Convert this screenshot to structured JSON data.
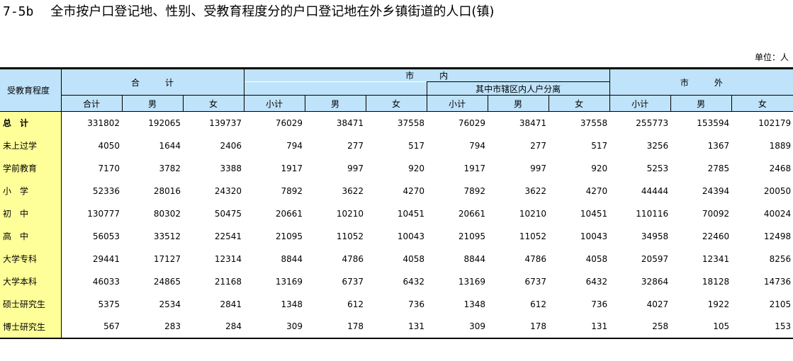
{
  "title": {
    "code": "7-5b",
    "text": "全市按户口登记地、性别、受教育程度分的户口登记地在外乡镇街道的人口(镇)"
  },
  "unit": "单位：人",
  "header": {
    "row_label": "受教育程度",
    "groups": {
      "total": "合　　　计",
      "city_inside": "市　　　内",
      "city_sub": "其中市辖区内人户分离",
      "city_outside": "市　　　外"
    },
    "columns": [
      "合计",
      "男",
      "女",
      "小计",
      "男",
      "女",
      "小计",
      "男",
      "女",
      "小计",
      "男",
      "女"
    ]
  },
  "rows": [
    {
      "label": "总　计",
      "values": [
        "331802",
        "192065",
        "139737",
        "76029",
        "38471",
        "37558",
        "76029",
        "38471",
        "37558",
        "255773",
        "153594",
        "102179"
      ]
    },
    {
      "label": "未上过学",
      "values": [
        "4050",
        "1644",
        "2406",
        "794",
        "277",
        "517",
        "794",
        "277",
        "517",
        "3256",
        "1367",
        "1889"
      ]
    },
    {
      "label": "学前教育",
      "values": [
        "7170",
        "3782",
        "3388",
        "1917",
        "997",
        "920",
        "1917",
        "997",
        "920",
        "5253",
        "2785",
        "2468"
      ]
    },
    {
      "label": "小　学",
      "values": [
        "52336",
        "28016",
        "24320",
        "7892",
        "3622",
        "4270",
        "7892",
        "3622",
        "4270",
        "44444",
        "24394",
        "20050"
      ]
    },
    {
      "label": "初　中",
      "values": [
        "130777",
        "80302",
        "50475",
        "20661",
        "10210",
        "10451",
        "20661",
        "10210",
        "10451",
        "110116",
        "70092",
        "40024"
      ]
    },
    {
      "label": "高　中",
      "values": [
        "56053",
        "33512",
        "22541",
        "21095",
        "11052",
        "10043",
        "21095",
        "11052",
        "10043",
        "34958",
        "22460",
        "12498"
      ]
    },
    {
      "label": "大学专科",
      "values": [
        "29441",
        "17127",
        "12314",
        "8844",
        "4786",
        "4058",
        "8844",
        "4786",
        "4058",
        "20597",
        "12341",
        "8256"
      ]
    },
    {
      "label": "大学本科",
      "values": [
        "46033",
        "24865",
        "21168",
        "13169",
        "6737",
        "6432",
        "13169",
        "6737",
        "6432",
        "32864",
        "18128",
        "14736"
      ]
    },
    {
      "label": "硕士研究生",
      "values": [
        "5375",
        "2534",
        "2841",
        "1348",
        "612",
        "736",
        "1348",
        "612",
        "736",
        "4027",
        "1922",
        "2105"
      ]
    },
    {
      "label": "博士研究生",
      "values": [
        "567",
        "283",
        "284",
        "309",
        "178",
        "131",
        "309",
        "178",
        "131",
        "258",
        "105",
        "153"
      ]
    }
  ]
}
